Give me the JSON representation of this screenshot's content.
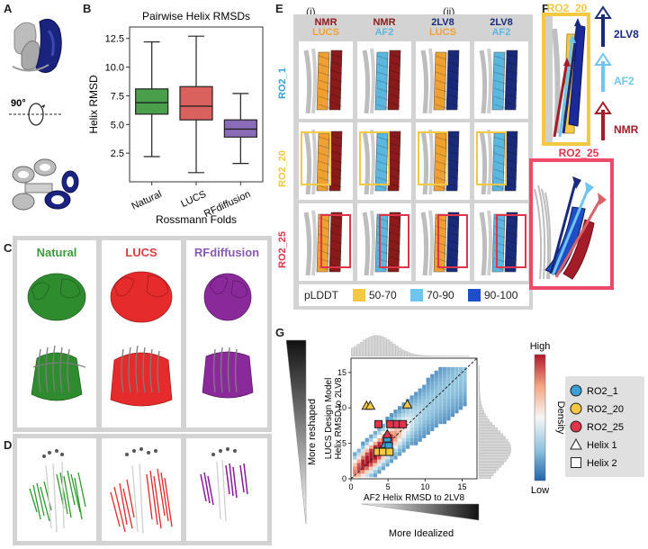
{
  "panels": {
    "a": "A",
    "b": "B",
    "c": "C",
    "d": "D",
    "e": "E",
    "f": "F",
    "g": "G"
  },
  "panel_a": {
    "rotation_label": "90°"
  },
  "chart_data": [
    {
      "type": "boxplot",
      "title": "Pairwise Helix RMSDs",
      "xlabel": "Rossmann Folds",
      "ylabel": "Helix RMSD",
      "ylim": [
        0,
        13.5
      ],
      "yticks": [
        "2.5",
        "5.0",
        "7.5",
        "10.0",
        "12.5"
      ],
      "categories": [
        "Natural",
        "LUCS",
        "RFdiffusion"
      ],
      "boxes": [
        {
          "name": "Natural",
          "min": 2.2,
          "q1": 5.9,
          "median": 6.9,
          "q3": 8.1,
          "max": 12.2,
          "color": "#4aa04a"
        },
        {
          "name": "LUCS",
          "min": 0.8,
          "q1": 5.4,
          "median": 6.6,
          "q3": 8.3,
          "max": 12.7,
          "color": "#d9625f"
        },
        {
          "name": "RFdiffusion",
          "min": 1.6,
          "q1": 3.9,
          "median": 4.6,
          "q3": 5.4,
          "max": 7.7,
          "color": "#8a6bb8"
        }
      ]
    },
    {
      "type": "heatmap",
      "xlabel": "AF2 Helix RMSD to 2LV8",
      "ylabel": "LUCS Design Model\nHelix RMSD to 2LV8",
      "xlim": [
        0,
        17
      ],
      "ylim": [
        0,
        17
      ],
      "xticks": [
        "0",
        "5",
        "10",
        "15"
      ],
      "yticks": [
        "0",
        "5",
        "10",
        "15"
      ],
      "colorbar": {
        "label": "Density",
        "high": "High",
        "low": "Low"
      },
      "markers": [
        {
          "design": "RO2_1",
          "helix": "Helix 1",
          "x": 4.6,
          "y": 4.9
        },
        {
          "design": "RO2_1",
          "helix": "Helix 2",
          "x": 4.9,
          "y": 5.7
        },
        {
          "design": "RO2_1",
          "helix": "Helix 2",
          "x": 5.1,
          "y": 4.6
        },
        {
          "design": "RO2_20",
          "helix": "Helix 1",
          "x": 2.1,
          "y": 10.3
        },
        {
          "design": "RO2_20",
          "helix": "Helix 1",
          "x": 2.6,
          "y": 10.3
        },
        {
          "design": "RO2_20",
          "helix": "Helix 1",
          "x": 7.6,
          "y": 10.5
        },
        {
          "design": "RO2_20",
          "helix": "Helix 2",
          "x": 3.6,
          "y": 3.8
        },
        {
          "design": "RO2_20",
          "helix": "Helix 2",
          "x": 4.3,
          "y": 3.8
        },
        {
          "design": "RO2_20",
          "helix": "Helix 2",
          "x": 5.2,
          "y": 3.8
        },
        {
          "design": "RO2_25",
          "helix": "Helix 1",
          "x": 4.9,
          "y": 6.3
        },
        {
          "design": "RO2_25",
          "helix": "Helix 2",
          "x": 3.7,
          "y": 7.7
        },
        {
          "design": "RO2_25",
          "helix": "Helix 2",
          "x": 5.3,
          "y": 7.7
        },
        {
          "design": "RO2_25",
          "helix": "Helix 2",
          "x": 6.2,
          "y": 7.7
        },
        {
          "design": "RO2_25",
          "helix": "Helix 2",
          "x": 7.0,
          "y": 7.7
        }
      ],
      "legend": [
        {
          "label": "RO2_1",
          "shape": "circle",
          "color": "#3aa0d8"
        },
        {
          "label": "RO2_20",
          "shape": "circle",
          "color": "#f5c842"
        },
        {
          "label": "RO2_25",
          "shape": "circle",
          "color": "#e0344a"
        },
        {
          "label": "Helix 1",
          "shape": "triangle",
          "color": "#ffffff"
        },
        {
          "label": "Helix 2",
          "shape": "square",
          "color": "#ffffff"
        }
      ]
    }
  ],
  "panel_c": {
    "columns": [
      "Natural",
      "LUCS",
      "RFdiffusion"
    ],
    "colors": [
      "#3a9a3a",
      "#d94040",
      "#8a5ab0"
    ]
  },
  "panel_e": {
    "group_labels": [
      "(i)",
      "(ii)"
    ],
    "columns": [
      {
        "top": "NMR",
        "bottom": "LUCS",
        "top_color": "#8b1a1a",
        "bottom_color": "#f0a030"
      },
      {
        "top": "NMR",
        "bottom": "AF2",
        "top_color": "#8b1a1a",
        "bottom_color": "#5ab8e0"
      },
      {
        "top": "2LV8",
        "bottom": "LUCS",
        "top_color": "#1a2a7a",
        "bottom_color": "#f0a030"
      },
      {
        "top": "2LV8",
        "bottom": "AF2",
        "top_color": "#1a2a7a",
        "bottom_color": "#5ab8e0"
      }
    ],
    "rows": [
      {
        "label": "RO2_1",
        "color": "#3aa0d8"
      },
      {
        "label": "RO2_20",
        "color": "#f5c842"
      },
      {
        "label": "RO2_25",
        "color": "#e0344a"
      }
    ],
    "plddt": {
      "title": "pLDDT",
      "bins": [
        {
          "label": "50-70",
          "color": "#f5c842"
        },
        {
          "label": "70-90",
          "color": "#6ec6ee"
        },
        {
          "label": "90-100",
          "color": "#1e4fc8"
        }
      ]
    }
  },
  "panel_f": {
    "top_label": "RO2_20",
    "bottom_label": "RO2_25",
    "arrows": [
      {
        "label": "2LV8",
        "color": "#1a2a7a"
      },
      {
        "label": "AF2",
        "color": "#6ec6ee"
      },
      {
        "label": "NMR",
        "color": "#a31d28"
      }
    ]
  },
  "panel_g": {
    "left_arrow": "More reshaped",
    "bottom_arrow": "More Idealized"
  }
}
